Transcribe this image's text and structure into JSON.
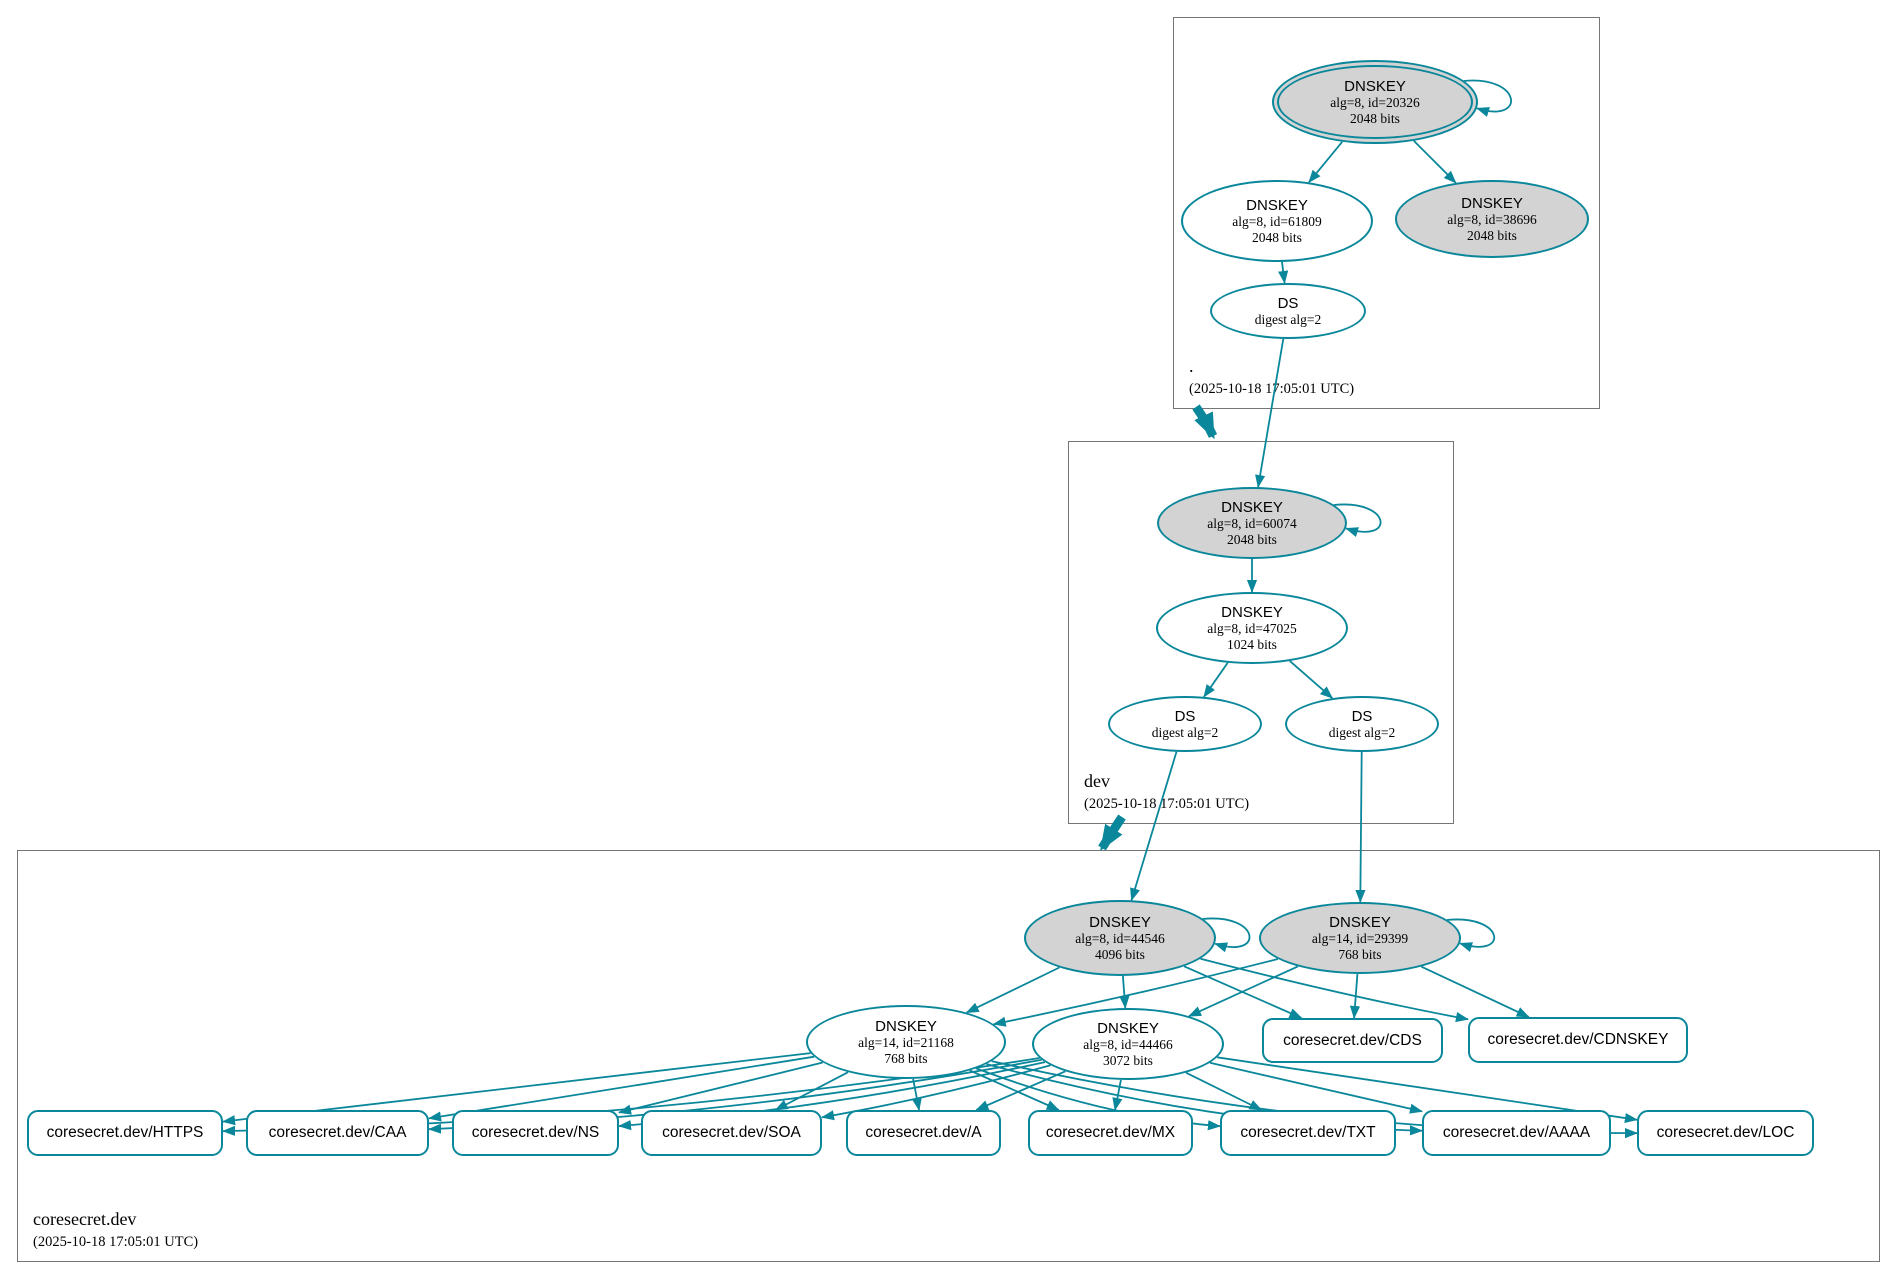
{
  "colors": {
    "edge": "#0a879a",
    "ksk_fill": "#d3d3d3",
    "node_fill": "#ffffff",
    "box_border": "#757575"
  },
  "zones": {
    "root": {
      "name": ".",
      "timestamp": "(2025-10-18 17:05:01 UTC)"
    },
    "dev": {
      "name": "dev",
      "timestamp": "(2025-10-18 17:05:01 UTC)"
    },
    "coresecret": {
      "name": "coresecret.dev",
      "timestamp": "(2025-10-18 17:05:01 UTC)"
    }
  },
  "nodes": {
    "root_ksk": {
      "type": "DNSKEY",
      "detail": "alg=8, id=20326",
      "bits": "2048 bits"
    },
    "root_zsk": {
      "type": "DNSKEY",
      "detail": "alg=8, id=61809",
      "bits": "2048 bits"
    },
    "root_ksk2": {
      "type": "DNSKEY",
      "detail": "alg=8, id=38696",
      "bits": "2048 bits"
    },
    "root_ds": {
      "type": "DS",
      "detail": "digest alg=2"
    },
    "dev_ksk": {
      "type": "DNSKEY",
      "detail": "alg=8, id=60074",
      "bits": "2048 bits"
    },
    "dev_zsk": {
      "type": "DNSKEY",
      "detail": "alg=8, id=47025",
      "bits": "1024 bits"
    },
    "dev_ds1": {
      "type": "DS",
      "detail": "digest alg=2"
    },
    "dev_ds2": {
      "type": "DS",
      "detail": "digest alg=2"
    },
    "cs_ksk1": {
      "type": "DNSKEY",
      "detail": "alg=8, id=44546",
      "bits": "4096 bits"
    },
    "cs_ksk2": {
      "type": "DNSKEY",
      "detail": "alg=14, id=29399",
      "bits": "768 bits"
    },
    "cs_zsk1": {
      "type": "DNSKEY",
      "detail": "alg=14, id=21168",
      "bits": "768 bits"
    },
    "cs_zsk2": {
      "type": "DNSKEY",
      "detail": "alg=8, id=44466",
      "bits": "3072 bits"
    },
    "cs_cds": {
      "label": "coresecret.dev/CDS"
    },
    "cs_cdnskey": {
      "label": "coresecret.dev/CDNSKEY"
    },
    "cs_https": {
      "label": "coresecret.dev/HTTPS"
    },
    "cs_caa": {
      "label": "coresecret.dev/CAA"
    },
    "cs_ns": {
      "label": "coresecret.dev/NS"
    },
    "cs_soa": {
      "label": "coresecret.dev/SOA"
    },
    "cs_a": {
      "label": "coresecret.dev/A"
    },
    "cs_mx": {
      "label": "coresecret.dev/MX"
    },
    "cs_txt": {
      "label": "coresecret.dev/TXT"
    },
    "cs_aaaa": {
      "label": "coresecret.dev/AAAA"
    },
    "cs_loc": {
      "label": "coresecret.dev/LOC"
    }
  },
  "edges": [
    [
      "root_ksk",
      "root_zsk"
    ],
    [
      "root_ksk",
      "root_ksk2"
    ],
    [
      "root_zsk",
      "root_ds"
    ],
    [
      "root_ds",
      "dev_ksk"
    ],
    [
      "dev_ksk",
      "dev_zsk"
    ],
    [
      "dev_zsk",
      "dev_ds1"
    ],
    [
      "dev_zsk",
      "dev_ds2"
    ],
    [
      "dev_ds1",
      "cs_ksk1"
    ],
    [
      "dev_ds2",
      "cs_ksk2"
    ],
    [
      "cs_ksk1",
      "cs_zsk1"
    ],
    [
      "cs_ksk1",
      "cs_zsk2"
    ],
    [
      "cs_ksk1",
      "cs_cds"
    ],
    [
      "cs_ksk1",
      "cs_cdnskey"
    ],
    [
      "cs_ksk2",
      "cs_zsk1"
    ],
    [
      "cs_ksk2",
      "cs_zsk2"
    ],
    [
      "cs_ksk2",
      "cs_cds"
    ],
    [
      "cs_ksk2",
      "cs_cdnskey"
    ],
    [
      "cs_zsk1",
      "cs_https"
    ],
    [
      "cs_zsk1",
      "cs_caa"
    ],
    [
      "cs_zsk1",
      "cs_ns"
    ],
    [
      "cs_zsk1",
      "cs_soa"
    ],
    [
      "cs_zsk1",
      "cs_a"
    ],
    [
      "cs_zsk1",
      "cs_mx"
    ],
    [
      "cs_zsk1",
      "cs_txt"
    ],
    [
      "cs_zsk1",
      "cs_aaaa"
    ],
    [
      "cs_zsk1",
      "cs_loc"
    ],
    [
      "cs_zsk2",
      "cs_https"
    ],
    [
      "cs_zsk2",
      "cs_caa"
    ],
    [
      "cs_zsk2",
      "cs_ns"
    ],
    [
      "cs_zsk2",
      "cs_soa"
    ],
    [
      "cs_zsk2",
      "cs_a"
    ],
    [
      "cs_zsk2",
      "cs_mx"
    ],
    [
      "cs_zsk2",
      "cs_txt"
    ],
    [
      "cs_zsk2",
      "cs_aaaa"
    ],
    [
      "cs_zsk2",
      "cs_loc"
    ]
  ],
  "self_loops": [
    "root_ksk",
    "dev_ksk",
    "cs_ksk1",
    "cs_ksk2"
  ],
  "delegations": [
    {
      "from": "root",
      "to": "dev"
    },
    {
      "from": "dev",
      "to": "coresecret"
    }
  ]
}
